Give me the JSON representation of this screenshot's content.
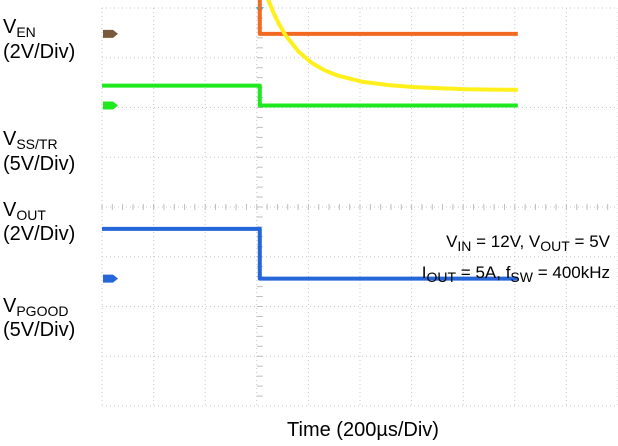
{
  "chart_data": {
    "type": "line",
    "title": "",
    "xlabel": "Time (200µs/Div)",
    "ylabel": "",
    "grid": true,
    "x_unit": "µs",
    "x_per_div": 200,
    "x_divisions": 10,
    "y_divisions": 8,
    "trigger_x": 0,
    "conditions": [
      {
        "parts": [
          {
            "text": "V",
            "sub": false
          },
          {
            "text": "IN",
            "sub": true
          },
          {
            "text": " = 12V, V",
            "sub": false
          },
          {
            "text": "OUT",
            "sub": true
          },
          {
            "text": " = 5V",
            "sub": false
          }
        ]
      },
      {
        "parts": [
          {
            "text": "I",
            "sub": false
          },
          {
            "text": "OUT",
            "sub": true
          },
          {
            "text": " = 5A, f",
            "sub": false
          },
          {
            "text": "SW",
            "sub": true
          },
          {
            "text": " = 400kHz",
            "sub": false
          }
        ]
      }
    ],
    "series": [
      {
        "name_parts": [
          {
            "text": "V",
            "sub": false
          },
          {
            "text": "EN",
            "sub": true
          }
        ],
        "scale": "(2V/Div)",
        "color": "#f26a21",
        "v_per_div": 2,
        "ground_div": 3.48,
        "x": [
          -1020,
          0,
          0,
          1000
        ],
        "y": [
          3.0,
          3.0,
          0.0,
          0.0
        ]
      },
      {
        "name_parts": [
          {
            "text": "V",
            "sub": false
          },
          {
            "text": "SS/TR",
            "sub": true
          }
        ],
        "scale": "(5V/Div)",
        "color": "#1ee81e",
        "v_per_div": 5,
        "ground_div": 2.04,
        "x": [
          -1020,
          0,
          0,
          1000
        ],
        "y": [
          2.0,
          2.0,
          0.0,
          0.0
        ]
      },
      {
        "name_parts": [
          {
            "text": "V",
            "sub": false
          },
          {
            "text": "OUT",
            "sub": true
          }
        ],
        "scale": "(2V/Div)",
        "color": "#ffef1a",
        "v_per_div": 2,
        "ground_div": 2.04,
        "x": [
          -1020,
          0,
          10,
          25,
          50,
          75,
          100,
          150,
          200,
          250,
          300,
          400,
          500,
          600,
          700,
          800,
          900,
          1000
        ],
        "y": [
          5.0,
          5.0,
          4.88,
          4.45,
          3.8,
          3.26,
          2.82,
          2.17,
          1.72,
          1.42,
          1.21,
          0.95,
          0.82,
          0.74,
          0.69,
          0.65,
          0.64,
          0.63
        ]
      },
      {
        "name_parts": [
          {
            "text": "V",
            "sub": false
          },
          {
            "text": "PGOOD",
            "sub": true
          }
        ],
        "scale": "(5V/Div)",
        "color": "#2566d8",
        "v_per_div": 5,
        "ground_div": -1.44,
        "x": [
          -1020,
          0,
          0,
          1000
        ],
        "y": [
          5.0,
          5.0,
          0.0,
          0.0
        ]
      }
    ]
  }
}
